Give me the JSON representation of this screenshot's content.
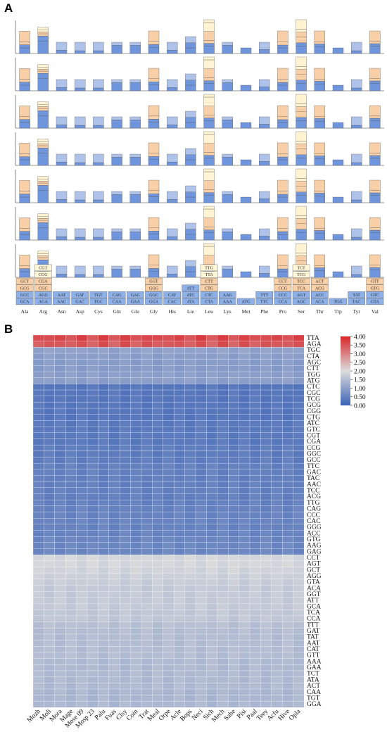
{
  "panels": {
    "a_label": "A",
    "b_label": "B"
  },
  "chart_data": [
    {
      "type": "bar",
      "stacked": true,
      "panel": "A",
      "species_rows": [
        "",
        "",
        "",
        "",
        "",
        "",
        ""
      ],
      "categories": [
        "Ala",
        "Arg",
        "Asn",
        "Asp",
        "Cys",
        "Gln",
        "Glu",
        "Gly",
        "His",
        "Lie",
        "Leu",
        "Lys",
        "Met",
        "Phe",
        "Pro",
        "Ser",
        "Thr",
        "Trp",
        "Tyr",
        "Val"
      ],
      "codon_table": [
        [
          "GCA",
          "GCC",
          "GCG",
          "GCT"
        ],
        [
          "AGA",
          "AGG",
          "CGC",
          "CGA",
          "CGG",
          "CGT"
        ],
        [
          "AAC",
          "AAT"
        ],
        [
          "GAC",
          "GAT"
        ],
        [
          "TGC",
          "TGT"
        ],
        [
          "CAA",
          "CAG"
        ],
        [
          "GAA",
          "GAG"
        ],
        [
          "GGA",
          "GGC",
          "GGG",
          "GGT"
        ],
        [
          "CAC",
          "CAT"
        ],
        [
          "ATA",
          "ATC",
          "ATT"
        ],
        [
          "CTA",
          "CTC",
          "CTG",
          "CTT",
          "TTA",
          "TTG"
        ],
        [
          "AAA",
          "AAG"
        ],
        [
          "ATG"
        ],
        [
          "TTC",
          "TTT"
        ],
        [
          "CCA",
          "CCC",
          "CCG",
          "CCT"
        ],
        [
          "AGC",
          "AGT",
          "TCA",
          "TCC",
          "TCG",
          "TCT"
        ],
        [
          "ACA",
          "ACC",
          "ACG",
          "ACT"
        ],
        [
          "TGG"
        ],
        [
          "TAC",
          "TAT"
        ],
        [
          "GTA",
          "GTC",
          "GTG",
          "GTT"
        ]
      ],
      "stack_values": [
        [
          1.0,
          0.55,
          0.5,
          1.9
        ],
        [
          2.2,
          0.9,
          0.4,
          0.35,
          0.3,
          0.5
        ],
        [
          0.6,
          1.4
        ],
        [
          0.5,
          1.5
        ],
        [
          0.5,
          1.5
        ],
        [
          1.45,
          0.55
        ],
        [
          1.45,
          0.55
        ],
        [
          1.1,
          0.5,
          0.55,
          1.85
        ],
        [
          0.6,
          1.4
        ],
        [
          1.0,
          0.9,
          1.1
        ],
        [
          1.3,
          0.5,
          0.5,
          1.6,
          1.6,
          0.5
        ],
        [
          1.45,
          0.55
        ],
        [
          1.0
        ],
        [
          0.7,
          1.3
        ],
        [
          1.0,
          0.5,
          0.6,
          1.9
        ],
        [
          1.3,
          0.6,
          1.0,
          0.9,
          0.5,
          1.7
        ],
        [
          1.2,
          0.5,
          0.4,
          1.9
        ],
        [
          1.0
        ],
        [
          0.5,
          1.5
        ],
        [
          1.3,
          0.45,
          0.45,
          1.8
        ]
      ],
      "ylim": [
        0,
        6
      ]
    },
    {
      "type": "heatmap",
      "panel": "B",
      "rows": [
        "TTA",
        "AGA",
        "TGC",
        "CTA",
        "AGC",
        "CTT",
        "TGG",
        "ATG",
        "CTC",
        "CGC",
        "TCG",
        "GCG",
        "CGG",
        "CTG",
        "ATC",
        "GTC",
        "CGT",
        "CGA",
        "CCG",
        "GGC",
        "GCC",
        "TTC",
        "GAC",
        "TAC",
        "AAC",
        "TCC",
        "ACG",
        "TTG",
        "CAG",
        "CCC",
        "CAC",
        "GGG",
        "ACC",
        "GTG",
        "AAG",
        "GAG",
        "CCT",
        "AGT",
        "GCT",
        "AGG",
        "GTA",
        "ACA",
        "GGT",
        "ATT",
        "GCA",
        "TCA",
        "CCA",
        "TTT",
        "GAT",
        "TAT",
        "AAT",
        "CAT",
        "GTT",
        "AAA",
        "GAA",
        "TCT",
        "ATA",
        "ACT",
        "CAA",
        "TGT",
        "GGA"
      ],
      "columns": [
        "Mozh",
        "Moli",
        "Mora",
        "Mage",
        "Mose 09",
        "Mosp 23",
        "Palu",
        "Fuas",
        "Clsy",
        "Coin",
        "Trat",
        "Meal",
        "Orpe",
        "Acle",
        "Bops",
        "Neci",
        "Sich",
        "Mech",
        "Sahe",
        "Pisi",
        "Paal",
        "Teey",
        "Acfu",
        "Hive",
        "Opla"
      ],
      "row_levels": [
        3.6,
        3.45,
        1.05,
        1.0,
        0.95,
        0.95,
        1.0,
        1.0,
        0.35,
        0.35,
        0.35,
        0.35,
        0.35,
        0.35,
        0.4,
        0.4,
        0.4,
        0.4,
        0.45,
        0.45,
        0.45,
        0.5,
        0.5,
        0.5,
        0.5,
        0.5,
        0.5,
        0.5,
        0.55,
        0.55,
        0.55,
        0.55,
        0.55,
        0.6,
        0.6,
        0.6,
        1.9,
        1.9,
        1.85,
        1.8,
        1.75,
        1.7,
        1.7,
        1.7,
        1.7,
        1.65,
        1.65,
        1.55,
        1.5,
        1.5,
        1.5,
        1.5,
        1.5,
        1.45,
        1.45,
        1.45,
        1.45,
        1.45,
        1.4,
        1.4,
        1.4
      ],
      "color_range": [
        0.0,
        4.0
      ],
      "colorbar_ticks": [
        "4.00",
        "3.50",
        "3.00",
        "2.50",
        "2.00",
        "1.50",
        "1.00",
        "0.50",
        "0.00"
      ],
      "colors": {
        "low": "#3b62b6",
        "mid": "#dcdcdc",
        "high": "#d7262a"
      }
    }
  ],
  "colors": {
    "bar_tier1": "#6f95dc",
    "bar_tier2": "#aec2ea",
    "bar_tier3": "#f8cfa6",
    "bar_tier4": "#fff3d2",
    "table_blue": "#8db0e8",
    "table_orange": "#f8cfa6",
    "table_cream": "#fff6d8"
  }
}
